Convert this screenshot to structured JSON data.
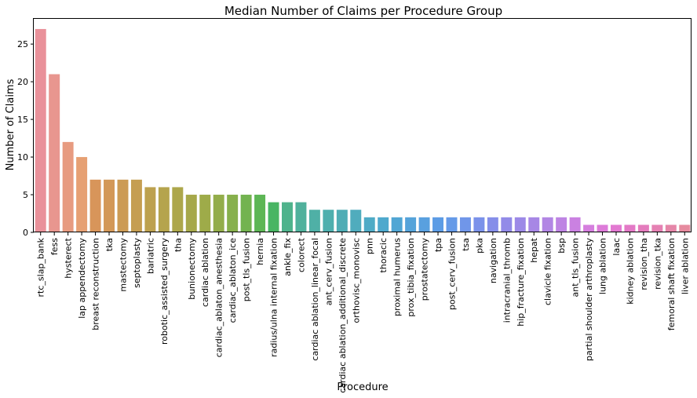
{
  "chart_data": {
    "type": "bar",
    "title": "Median Number of Claims per Procedure Group",
    "xlabel": "Procedure",
    "ylabel": "Number of Claims",
    "ylim": [
      0,
      28.35
    ],
    "yticks": [
      0,
      5,
      10,
      15,
      20,
      25
    ],
    "grid": false,
    "categories": [
      "rtc_slap_bank",
      "fess",
      "hysterect",
      "lap appendectomy",
      "breast reconstruction",
      "tka",
      "mastectomy",
      "septoplasty",
      "bariatric",
      "robotic_assisted_surgery",
      "tha",
      "bunionectomy",
      "cardiac ablation",
      "cardiac_ablaton_anesthesia",
      "cardiac_ablaton_ice",
      "post_tls_fusion",
      "hernia",
      "radius/ulna internal fixation",
      "ankle_fix",
      "colorect",
      "cardiac ablation_linear_focal",
      "ant_cerv_fusion",
      "cardiac ablation_additional_discrete",
      "orthovisc_monovisc",
      "pnn",
      "thoracic",
      "proximal humerus",
      "prox_tibia_fixation",
      "prostatectomy",
      "tpa",
      "post_cerv_fusion",
      "tsa",
      "pka",
      "navigation",
      "intracranial_thromb",
      "hip_fracture_fixation",
      "hepat",
      "clavicle fixation",
      "bsp",
      "ant_tls_fusion",
      "partial shoulder arthroplasty",
      "lung ablation",
      "laac",
      "kidney ablation",
      "revision_tha",
      "revision_tka",
      "femoral shaft fixation",
      "liver ablation"
    ],
    "values": [
      27,
      21,
      12,
      10,
      7,
      7,
      7,
      7,
      6,
      6,
      6,
      5,
      5,
      5,
      5,
      5,
      5,
      4,
      4,
      4,
      3,
      3,
      3,
      3,
      2,
      2,
      2,
      2,
      2,
      2,
      2,
      2,
      2,
      2,
      2,
      2,
      2,
      2,
      2,
      2,
      1,
      1,
      1,
      1,
      1,
      1,
      1,
      1
    ],
    "colors": [
      "#e9919a",
      "#e8968f",
      "#e79b80",
      "#e6a073",
      "#d8955a",
      "#d39858",
      "#cc9b55",
      "#c59e52",
      "#bda14f",
      "#b5a44d",
      "#ada74b",
      "#a6a84a",
      "#9eab49",
      "#93ad4a",
      "#87b04c",
      "#73b350",
      "#5db655",
      "#48b563",
      "#4fb38c",
      "#50b19c",
      "#4fb0a6",
      "#4eafae",
      "#4fadb5",
      "#50acbd",
      "#4fabc6",
      "#4fa9cd",
      "#51a6d4",
      "#55a3da",
      "#59a0df",
      "#5c9ce5",
      "#659ae8",
      "#7096e9",
      "#7b92ea",
      "#858ee9",
      "#928be8",
      "#9c89e7",
      "#a787e5",
      "#b286e4",
      "#be84e3",
      "#ca81e1",
      "#d57ede",
      "#dd7bd9",
      "#e279d1",
      "#e379c6",
      "#e47cbd",
      "#e581b3",
      "#e586a8",
      "#e68b9f"
    ]
  }
}
